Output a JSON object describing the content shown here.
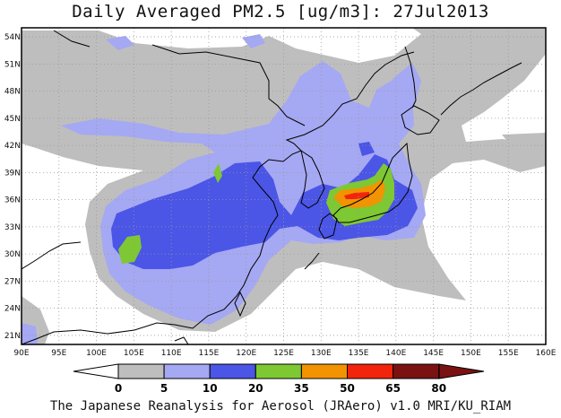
{
  "title": "Daily Averaged PM2.5 [ug/m3]: 27Jul2013",
  "footer": "The Japanese Reanalysis for Aerosol (JRAero) v1.0 MRI/KU_RIAM",
  "map": {
    "lon_range": [
      90,
      160
    ],
    "lat_range": [
      20,
      55
    ],
    "lon_labels": [
      "90E",
      "95E",
      "100E",
      "105E",
      "110E",
      "115E",
      "120E",
      "125E",
      "130E",
      "135E",
      "140E",
      "145E",
      "150E",
      "155E",
      "160E"
    ],
    "lat_labels": [
      "21N",
      "24N",
      "27N",
      "30N",
      "33N",
      "36N",
      "39N",
      "42N",
      "45N",
      "48N",
      "51N",
      "54N"
    ],
    "grid": true
  },
  "colorbar": {
    "levels": [
      "0",
      "5",
      "10",
      "20",
      "35",
      "50",
      "65",
      "80"
    ],
    "colors": [
      "#ffffff",
      "#bebebe",
      "#a5a8f2",
      "#4b55e6",
      "#7ec833",
      "#f29300",
      "#f2240c",
      "#7a1212"
    ]
  }
}
